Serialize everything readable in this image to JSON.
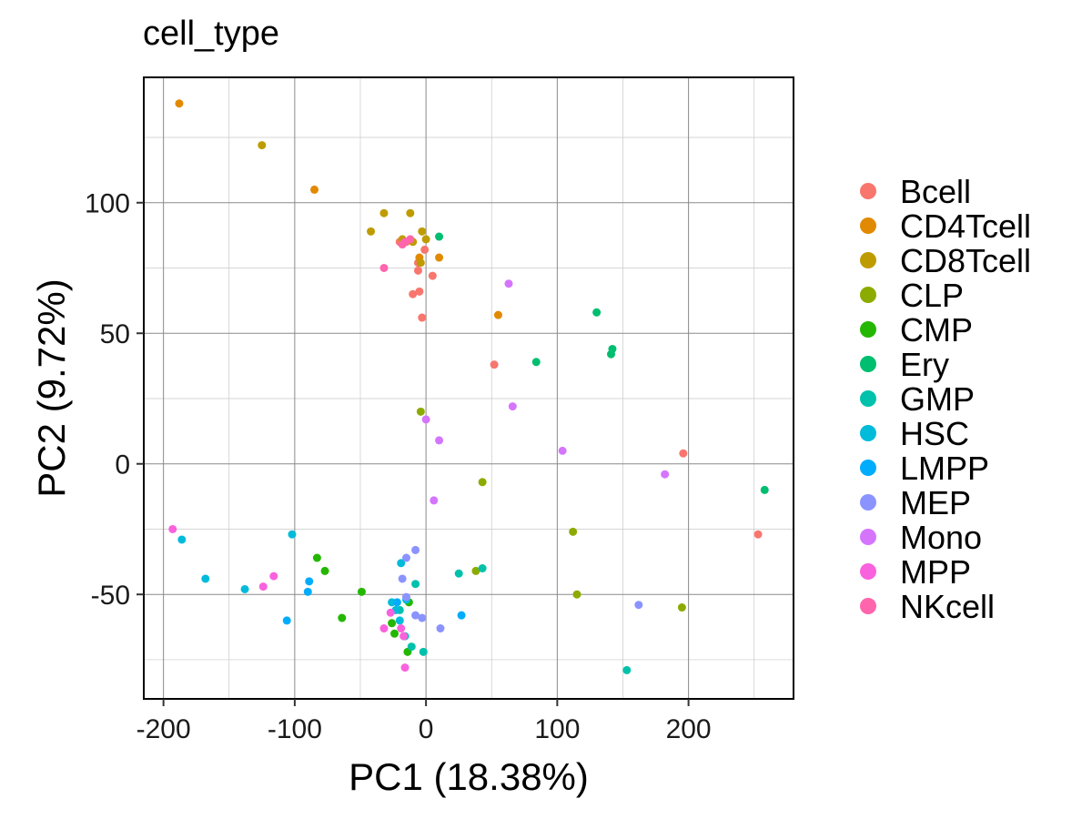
{
  "chart_data": {
    "type": "scatter",
    "title": "cell_type",
    "xlabel": "PC1 (18.38%)",
    "ylabel": "PC2 (9.72%)",
    "xlim": [
      -215,
      280
    ],
    "ylim": [
      -90,
      148
    ],
    "x_ticks": [
      -200,
      -100,
      0,
      100,
      200
    ],
    "x_tick_labels": [
      "-200",
      "-100",
      "0",
      "100",
      "200"
    ],
    "y_ticks": [
      -50,
      0,
      50,
      100
    ],
    "y_tick_labels": [
      "-50",
      "0",
      "50",
      "100"
    ],
    "grid": true,
    "legend_position": "right",
    "series": [
      {
        "name": "Bcell",
        "color": "#F8766D",
        "points": [
          [
            -15,
            85
          ],
          [
            -1,
            82
          ],
          [
            -3,
            56
          ],
          [
            5,
            72
          ],
          [
            -6,
            74
          ],
          [
            -10,
            65
          ],
          [
            -5,
            66
          ],
          [
            52,
            38
          ],
          [
            196,
            4
          ],
          [
            253,
            -27
          ],
          [
            -6,
            77
          ],
          [
            -20,
            85
          ]
        ]
      },
      {
        "name": "CD4Tcell",
        "color": "#E18A00",
        "points": [
          [
            -188,
            138
          ],
          [
            -85,
            105
          ],
          [
            10,
            79
          ],
          [
            55,
            57
          ],
          [
            -5,
            79
          ]
        ]
      },
      {
        "name": "CD8Tcell",
        "color": "#BE9C00",
        "points": [
          [
            -125,
            122
          ],
          [
            -32,
            96
          ],
          [
            -12,
            96
          ],
          [
            -42,
            89
          ],
          [
            -18,
            86
          ],
          [
            -10,
            85
          ],
          [
            -3,
            89
          ],
          [
            0,
            86
          ],
          [
            -4,
            77
          ]
        ]
      },
      {
        "name": "CLP",
        "color": "#8CAB00",
        "points": [
          [
            -4,
            20
          ],
          [
            43,
            -7
          ],
          [
            112,
            -26
          ],
          [
            115,
            -50
          ],
          [
            195,
            -55
          ],
          [
            38,
            -41
          ]
        ]
      },
      {
        "name": "CMP",
        "color": "#24B700",
        "points": [
          [
            -83,
            -36
          ],
          [
            -77,
            -41
          ],
          [
            -49,
            -49
          ],
          [
            -64,
            -59
          ],
          [
            -24,
            -65
          ],
          [
            -13,
            -53
          ],
          [
            -26,
            -61
          ],
          [
            -14,
            -72
          ]
        ]
      },
      {
        "name": "Ery",
        "color": "#00BE70",
        "points": [
          [
            10,
            87
          ],
          [
            130,
            58
          ],
          [
            142,
            44
          ],
          [
            141,
            42
          ],
          [
            84,
            39
          ],
          [
            258,
            -10
          ]
        ]
      },
      {
        "name": "GMP",
        "color": "#00C1AB",
        "points": [
          [
            -8,
            -46
          ],
          [
            25,
            -42
          ],
          [
            43,
            -40
          ],
          [
            -20,
            -56
          ],
          [
            -11,
            -70
          ],
          [
            -2,
            -72
          ],
          [
            153,
            -79
          ],
          [
            -16,
            -66
          ]
        ]
      },
      {
        "name": "HSC",
        "color": "#00BBDA",
        "points": [
          [
            -186,
            -29
          ],
          [
            -168,
            -44
          ],
          [
            -138,
            -48
          ],
          [
            -102,
            -27
          ],
          [
            -19,
            -38
          ],
          [
            -26,
            -53
          ],
          [
            -23,
            -56
          ],
          [
            -15,
            -52
          ],
          [
            -20,
            -60
          ]
        ]
      },
      {
        "name": "LMPP",
        "color": "#00ACFC",
        "points": [
          [
            -89,
            -45
          ],
          [
            -90,
            -49
          ],
          [
            -106,
            -60
          ],
          [
            -22,
            -53
          ],
          [
            27,
            -58
          ]
        ]
      },
      {
        "name": "MEP",
        "color": "#8B93FF",
        "points": [
          [
            -15,
            -36
          ],
          [
            -8,
            -33
          ],
          [
            -18,
            -44
          ],
          [
            -15,
            -51
          ],
          [
            -8,
            -58
          ],
          [
            -3,
            -59
          ],
          [
            11,
            -63
          ],
          [
            162,
            -54
          ]
        ]
      },
      {
        "name": "Mono",
        "color": "#D575FE",
        "points": [
          [
            63,
            69
          ],
          [
            0,
            17
          ],
          [
            10,
            9
          ],
          [
            66,
            22
          ],
          [
            104,
            5
          ],
          [
            182,
            -4
          ],
          [
            6,
            -14
          ]
        ]
      },
      {
        "name": "MPP",
        "color": "#F962DD",
        "points": [
          [
            -193,
            -25
          ],
          [
            -116,
            -43
          ],
          [
            -124,
            -47
          ],
          [
            -32,
            -63
          ],
          [
            -19,
            -63
          ],
          [
            -17,
            -66
          ],
          [
            -16,
            -78
          ],
          [
            -27,
            -57
          ]
        ]
      },
      {
        "name": "NKcell",
        "color": "#FF65AC",
        "points": [
          [
            -32,
            75
          ],
          [
            -16,
            85
          ],
          [
            -18,
            84
          ],
          [
            -12,
            86
          ]
        ]
      }
    ]
  }
}
